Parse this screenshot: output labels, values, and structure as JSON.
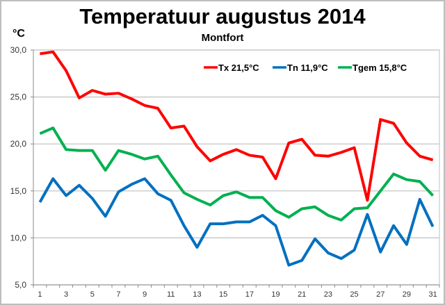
{
  "chart_data": {
    "type": "line",
    "title": "Temperatuur augustus 2014",
    "subtitle": "Montfort",
    "ylabel": "°C",
    "xlabel": "",
    "ylim": [
      5,
      30
    ],
    "yticks": [
      "5,0",
      "10,0",
      "15,0",
      "20,0",
      "25,0",
      "30,0"
    ],
    "ytick_values": [
      5,
      10,
      15,
      20,
      25,
      30
    ],
    "xticks": [
      "1",
      "3",
      "5",
      "7",
      "9",
      "11",
      "13",
      "15",
      "17",
      "19",
      "21",
      "23",
      "25",
      "27",
      "29",
      "31"
    ],
    "x": [
      1,
      2,
      3,
      4,
      5,
      6,
      7,
      8,
      9,
      10,
      11,
      12,
      13,
      14,
      15,
      16,
      17,
      18,
      19,
      20,
      21,
      22,
      23,
      24,
      25,
      26,
      27,
      28,
      29,
      30,
      31
    ],
    "grid": true,
    "legend_position": "top-right",
    "series": [
      {
        "name": "Tx 21,5°C",
        "color": "#ff0000",
        "values": [
          29.6,
          29.8,
          27.8,
          24.9,
          25.7,
          25.3,
          25.4,
          24.8,
          24.1,
          23.8,
          21.7,
          21.9,
          19.7,
          18.2,
          18.9,
          19.4,
          18.8,
          18.6,
          16.3,
          20.1,
          20.5,
          18.8,
          18.7,
          19.1,
          19.6,
          14.0,
          22.6,
          22.2,
          20.1,
          18.7,
          18.3
        ]
      },
      {
        "name": "Tn 11,9°C",
        "color": "#0070c0",
        "values": [
          13.8,
          16.3,
          14.5,
          15.6,
          14.2,
          12.3,
          14.9,
          15.7,
          16.3,
          14.7,
          14.0,
          11.3,
          9.0,
          11.5,
          11.5,
          11.7,
          11.7,
          12.4,
          11.3,
          7.1,
          7.6,
          9.9,
          8.4,
          7.8,
          8.7,
          12.5,
          8.5,
          11.3,
          9.3,
          14.1,
          11.2
        ]
      },
      {
        "name": "Tgem 15,8°C",
        "color": "#00b050",
        "values": [
          21.1,
          21.7,
          19.4,
          19.3,
          19.3,
          17.2,
          19.3,
          18.9,
          18.4,
          18.7,
          16.7,
          14.8,
          14.1,
          13.5,
          14.5,
          14.9,
          14.3,
          14.3,
          12.9,
          12.2,
          13.1,
          13.3,
          12.4,
          11.9,
          13.1,
          13.2,
          15.0,
          16.8,
          16.2,
          16.0,
          14.5
        ]
      }
    ]
  }
}
